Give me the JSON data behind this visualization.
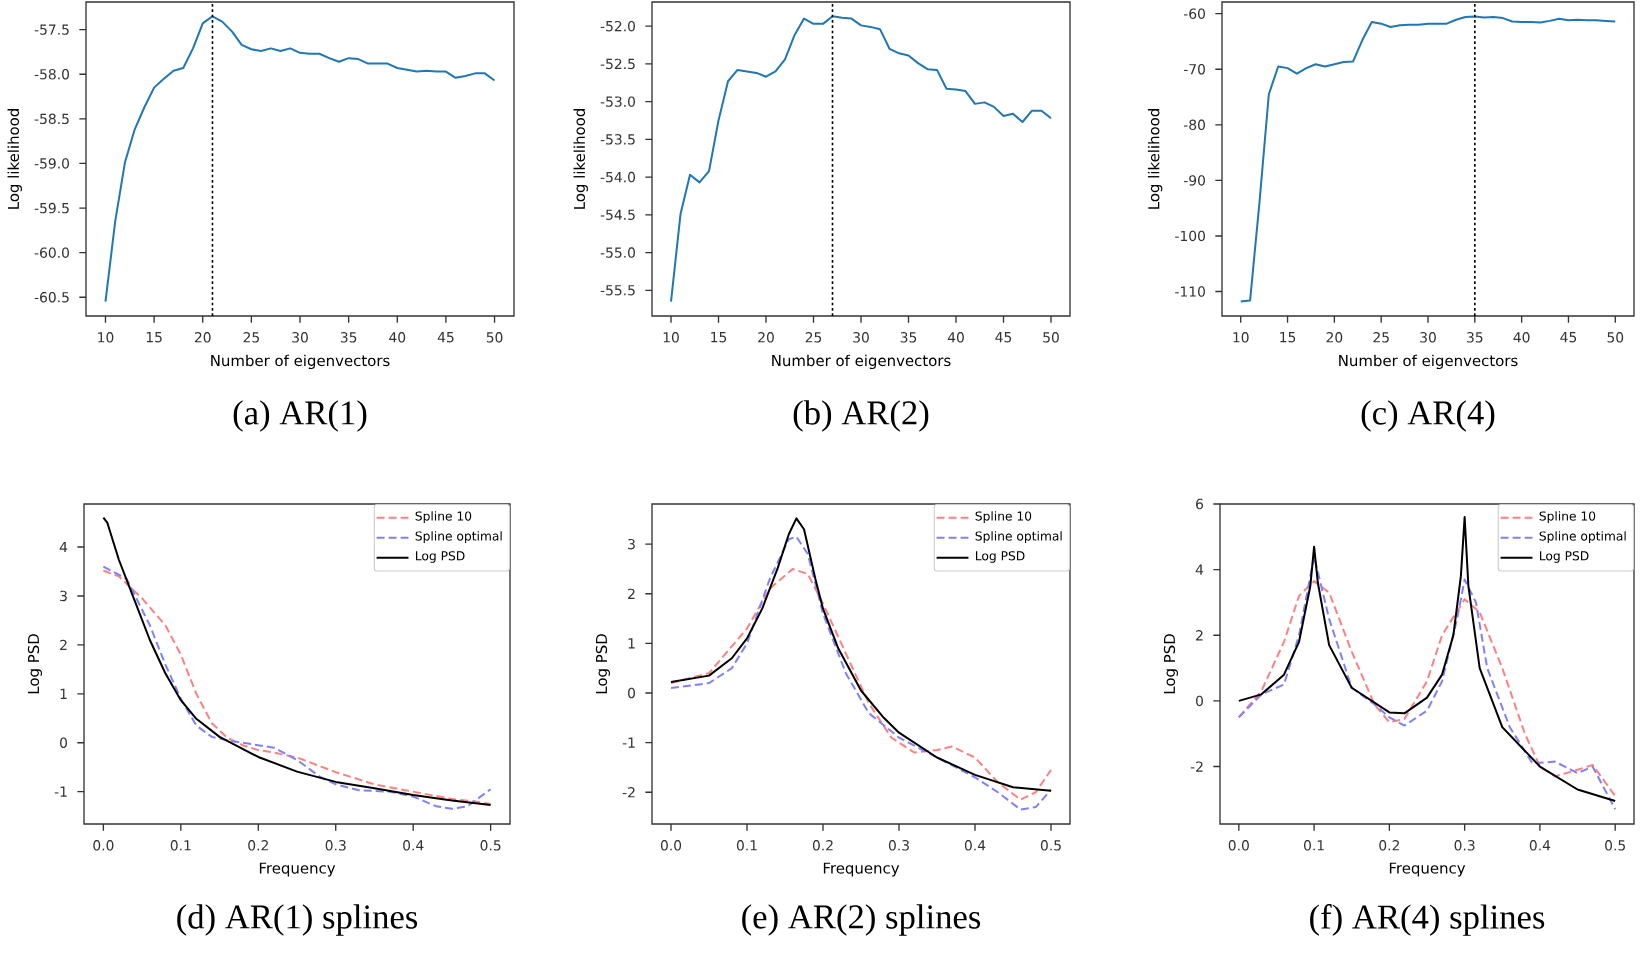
{
  "chart_data": [
    {
      "type": "line",
      "xlabel": "Number of eigenvectors",
      "ylabel": "Log likelihood",
      "annotations": [
        "(a) AR(1)"
      ],
      "x": [
        10,
        11,
        12,
        13,
        14,
        15,
        16,
        17,
        18,
        19,
        20,
        21,
        22,
        23,
        24,
        25,
        26,
        27,
        28,
        29,
        30,
        31,
        32,
        33,
        34,
        35,
        36,
        37,
        38,
        39,
        40,
        41,
        42,
        43,
        44,
        45,
        46,
        47,
        48,
        49,
        50
      ],
      "series": [
        {
          "color": "#1f77b4",
          "line_style": "solid",
          "values": [
            -60.55,
            -59.65,
            -58.99,
            -58.62,
            -58.37,
            -58.15,
            -58.05,
            -57.96,
            -57.93,
            -57.71,
            -57.43,
            -57.35,
            -57.41,
            -57.52,
            -57.67,
            -57.72,
            -57.74,
            -57.71,
            -57.74,
            -57.71,
            -57.76,
            -57.77,
            -57.77,
            -57.82,
            -57.86,
            -57.82,
            -57.83,
            -57.88,
            -57.88,
            -57.88,
            -57.93,
            -57.95,
            -57.97,
            -57.96,
            -57.97,
            -57.97,
            -58.04,
            -58.02,
            -57.99,
            -57.99,
            -58.07
          ]
        }
      ],
      "xlim": [
        8,
        52
      ],
      "ylim": [
        -60.71,
        -57.19
      ],
      "xticks": [
        10,
        15,
        20,
        25,
        30,
        35,
        40,
        45,
        50
      ],
      "yticks": [
        -60.5,
        {
          "value": -60,
          "label": "-60.0"
        },
        -59.5,
        {
          "value": -59,
          "label": "-59.0"
        },
        -58.5,
        {
          "value": -58,
          "label": "-58.0"
        },
        -57.5
      ],
      "ref_lines": [
        {
          "axis": "x",
          "value": 21,
          "color": "#000000",
          "line_style": "dotted"
        }
      ]
    },
    {
      "type": "line",
      "xlabel": "Number of eigenvectors",
      "ylabel": "Log likelihood",
      "annotations": [
        "(b) AR(2)"
      ],
      "x": [
        10,
        11,
        12,
        13,
        14,
        15,
        16,
        17,
        18,
        19,
        20,
        21,
        22,
        23,
        24,
        25,
        26,
        27,
        28,
        29,
        30,
        31,
        32,
        33,
        34,
        35,
        36,
        37,
        38,
        39,
        40,
        41,
        42,
        43,
        44,
        45,
        46,
        47,
        48,
        49,
        50
      ],
      "series": [
        {
          "color": "#1f77b4",
          "line_style": "solid",
          "values": [
            -55.65,
            -54.49,
            -53.97,
            -54.07,
            -53.92,
            -53.25,
            -52.73,
            -52.58,
            -52.6,
            -52.62,
            -52.67,
            -52.6,
            -52.44,
            -52.12,
            -51.9,
            -51.97,
            -51.97,
            -51.87,
            -51.89,
            -51.9,
            -51.99,
            -52.01,
            -52.04,
            -52.3,
            -52.36,
            -52.39,
            -52.49,
            -52.57,
            -52.58,
            -52.83,
            -52.84,
            -52.86,
            -53.03,
            -53.01,
            -53.07,
            -53.19,
            -53.16,
            -53.27,
            -53.12,
            -53.12,
            -53.22
          ]
        }
      ],
      "xlim": [
        8,
        52
      ],
      "ylim": [
        -55.84,
        -51.68
      ],
      "xticks": [
        10,
        15,
        20,
        25,
        30,
        35,
        40,
        45,
        50
      ],
      "yticks": [
        -55.5,
        {
          "value": -55,
          "label": "-55.0"
        },
        -54.5,
        {
          "value": -54,
          "label": "-54.0"
        },
        -53.5,
        {
          "value": -53,
          "label": "-53.0"
        },
        -52.5,
        {
          "value": -52,
          "label": "-52.0"
        }
      ],
      "ref_lines": [
        {
          "axis": "x",
          "value": 27,
          "color": "#000000",
          "line_style": "dotted"
        }
      ]
    },
    {
      "type": "line",
      "xlabel": "Number of eigenvectors",
      "ylabel": "Log likelihood",
      "annotations": [
        "(c) AR(4)"
      ],
      "x": [
        10,
        11,
        12,
        13,
        14,
        15,
        16,
        17,
        18,
        19,
        20,
        21,
        22,
        23,
        24,
        25,
        26,
        27,
        28,
        29,
        30,
        31,
        32,
        33,
        34,
        35,
        36,
        37,
        38,
        39,
        40,
        41,
        42,
        43,
        44,
        45,
        46,
        47,
        48,
        49,
        50
      ],
      "series": [
        {
          "color": "#1f77b4",
          "line_style": "solid",
          "values": [
            -111.8,
            -111.6,
            -94,
            -74.5,
            -69.5,
            -69.8,
            -70.8,
            -69.8,
            -69.1,
            -69.5,
            -69.1,
            -68.7,
            -68.6,
            -64.7,
            -61.5,
            -61.8,
            -62.4,
            -62.1,
            -62,
            -62,
            -61.8,
            -61.8,
            -61.8,
            -61.1,
            -60.6,
            -60.5,
            -60.7,
            -60.6,
            -60.8,
            -61.4,
            -61.5,
            -61.5,
            -61.6,
            -61.3,
            -60.9,
            -61.2,
            -61.1,
            -61.2,
            -61.2,
            -61.3,
            -61.4
          ]
        }
      ],
      "xlim": [
        8,
        52
      ],
      "ylim": [
        -114.4,
        -57.9
      ],
      "xticks": [
        10,
        15,
        20,
        25,
        30,
        35,
        40,
        45,
        50
      ],
      "yticks": [
        -110,
        -100,
        -90,
        -80,
        -70,
        -60
      ],
      "ref_lines": [
        {
          "axis": "x",
          "value": 35,
          "color": "#000000",
          "line_style": "dotted"
        }
      ]
    },
    {
      "type": "line",
      "xlabel": "Frequency",
      "ylabel": "Log PSD",
      "annotations": [
        "(d) AR(1) splines"
      ],
      "legend": "top right",
      "series": [
        {
          "name": "Spline 10",
          "color": "#ff8080",
          "line_style": "dashed",
          "x": [
            0,
            0.02,
            0.05,
            0.08,
            0.1,
            0.12,
            0.14,
            0.16,
            0.18,
            0.2,
            0.22,
            0.25,
            0.3,
            0.35,
            0.4,
            0.45,
            0.48,
            0.5
          ],
          "values": [
            3.52,
            3.4,
            2.95,
            2.4,
            1.8,
            1.0,
            0.4,
            0.1,
            -0.05,
            -0.15,
            -0.2,
            -0.3,
            -0.6,
            -0.85,
            -1.0,
            -1.15,
            -1.2,
            -1.25
          ]
        },
        {
          "name": "Spline optimal",
          "color": "#8080ff",
          "line_style": "dashed",
          "x": [
            0,
            0.03,
            0.06,
            0.08,
            0.1,
            0.12,
            0.14,
            0.16,
            0.18,
            0.2,
            0.22,
            0.25,
            0.28,
            0.3,
            0.33,
            0.37,
            0.4,
            0.43,
            0.45,
            0.47,
            0.5
          ],
          "values": [
            3.6,
            3.35,
            2.4,
            1.6,
            0.9,
            0.35,
            0.12,
            0.05,
            0.0,
            -0.05,
            -0.1,
            -0.35,
            -0.7,
            -0.85,
            -0.97,
            -1.0,
            -1.1,
            -1.3,
            -1.35,
            -1.3,
            -0.95
          ]
        },
        {
          "name": "Log PSD",
          "color": "#000000",
          "line_style": "solid",
          "x": [
            0,
            0.005,
            0.02,
            0.04,
            0.06,
            0.08,
            0.1,
            0.12,
            0.15,
            0.2,
            0.25,
            0.3,
            0.35,
            0.4,
            0.45,
            0.5
          ],
          "values": [
            4.6,
            4.5,
            3.74,
            2.92,
            2.1,
            1.42,
            0.87,
            0.49,
            0.12,
            -0.29,
            -0.59,
            -0.8,
            -0.93,
            -1.07,
            -1.18,
            -1.27
          ]
        }
      ],
      "xlim": [
        -0.025,
        0.525
      ],
      "ylim": [
        -1.66,
        4.88
      ],
      "xticks": [
        {
          "value": 0,
          "label": "0.0"
        },
        {
          "value": 0.1,
          "label": "0.1"
        },
        {
          "value": 0.2,
          "label": "0.2"
        },
        {
          "value": 0.3,
          "label": "0.3"
        },
        {
          "value": 0.4,
          "label": "0.4"
        },
        {
          "value": 0.5,
          "label": "0.5"
        }
      ],
      "yticks": [
        -1,
        0,
        1,
        2,
        3,
        4
      ]
    },
    {
      "type": "line",
      "xlabel": "Frequency",
      "ylabel": "Log PSD",
      "annotations": [
        "(e) AR(2) splines"
      ],
      "legend": "top right",
      "series": [
        {
          "name": "Spline 10",
          "color": "#ff8080",
          "line_style": "dashed",
          "x": [
            0,
            0.05,
            0.1,
            0.13,
            0.16,
            0.18,
            0.2,
            0.23,
            0.26,
            0.29,
            0.32,
            0.35,
            0.37,
            0.4,
            0.43,
            0.46,
            0.48,
            0.5
          ],
          "values": [
            0.2,
            0.4,
            1.3,
            2.1,
            2.5,
            2.4,
            1.8,
            0.8,
            -0.2,
            -0.9,
            -1.2,
            -1.15,
            -1.08,
            -1.3,
            -1.8,
            -2.15,
            -2.0,
            -1.55
          ]
        },
        {
          "name": "Spline optimal",
          "color": "#8080ff",
          "line_style": "dashed",
          "x": [
            0,
            0.05,
            0.08,
            0.1,
            0.13,
            0.155,
            0.165,
            0.18,
            0.2,
            0.23,
            0.26,
            0.3,
            0.35,
            0.4,
            0.43,
            0.46,
            0.48,
            0.5
          ],
          "values": [
            0.1,
            0.2,
            0.5,
            1.0,
            2.3,
            3.1,
            3.15,
            2.8,
            1.6,
            0.4,
            -0.4,
            -0.9,
            -1.3,
            -1.7,
            -2.0,
            -2.35,
            -2.3,
            -1.95
          ]
        },
        {
          "name": "Log PSD",
          "color": "#000000",
          "line_style": "solid",
          "x": [
            0,
            0.05,
            0.08,
            0.1,
            0.12,
            0.14,
            0.155,
            0.165,
            0.175,
            0.19,
            0.2,
            0.22,
            0.25,
            0.28,
            0.3,
            0.35,
            0.4,
            0.45,
            0.5
          ],
          "values": [
            0.22,
            0.35,
            0.7,
            1.1,
            1.7,
            2.5,
            3.2,
            3.52,
            3.3,
            2.3,
            1.7,
            0.9,
            0.05,
            -0.5,
            -0.8,
            -1.3,
            -1.65,
            -1.9,
            -1.97
          ]
        }
      ],
      "xlim": [
        -0.025,
        0.525
      ],
      "ylim": [
        -2.64,
        3.81
      ],
      "xticks": [
        {
          "value": 0,
          "label": "0.0"
        },
        {
          "value": 0.1,
          "label": "0.1"
        },
        {
          "value": 0.2,
          "label": "0.2"
        },
        {
          "value": 0.3,
          "label": "0.3"
        },
        {
          "value": 0.4,
          "label": "0.4"
        },
        {
          "value": 0.5,
          "label": "0.5"
        }
      ],
      "yticks": [
        -2,
        -1,
        0,
        1,
        2,
        3
      ]
    },
    {
      "type": "line",
      "xlabel": "Frequency",
      "ylabel": "Log PSD",
      "annotations": [
        "(f) AR(4) splines"
      ],
      "legend": "top right",
      "series": [
        {
          "name": "Spline 10",
          "color": "#ff8080",
          "line_style": "dashed",
          "x": [
            0,
            0.03,
            0.06,
            0.08,
            0.1,
            0.12,
            0.15,
            0.18,
            0.2,
            0.22,
            0.25,
            0.27,
            0.3,
            0.32,
            0.35,
            0.38,
            0.4,
            0.42,
            0.45,
            0.47,
            0.5
          ],
          "values": [
            -0.5,
            0.3,
            1.8,
            3.2,
            3.65,
            3.3,
            1.5,
            -0.1,
            -0.65,
            -0.55,
            0.6,
            2.0,
            3.1,
            2.7,
            1.0,
            -1.0,
            -2.0,
            -2.3,
            -2.1,
            -1.95,
            -2.9
          ]
        },
        {
          "name": "Spline optimal",
          "color": "#8080ff",
          "line_style": "dashed",
          "x": [
            0,
            0.03,
            0.06,
            0.08,
            0.1,
            0.12,
            0.15,
            0.18,
            0.2,
            0.22,
            0.25,
            0.27,
            0.29,
            0.3,
            0.315,
            0.33,
            0.36,
            0.39,
            0.42,
            0.45,
            0.47,
            0.5
          ],
          "values": [
            -0.5,
            0.2,
            0.5,
            2.0,
            4.4,
            2.5,
            0.4,
            -0.1,
            -0.5,
            -0.75,
            -0.3,
            0.6,
            2.5,
            3.7,
            3.0,
            1.0,
            -0.8,
            -1.9,
            -1.85,
            -2.2,
            -2.0,
            -3.3
          ]
        },
        {
          "name": "Log PSD",
          "color": "#000000",
          "line_style": "solid",
          "x": [
            0,
            0.03,
            0.06,
            0.08,
            0.095,
            0.1,
            0.105,
            0.12,
            0.15,
            0.2,
            0.22,
            0.25,
            0.27,
            0.285,
            0.295,
            0.3,
            0.305,
            0.32,
            0.35,
            0.4,
            0.45,
            0.5
          ],
          "values": [
            0.0,
            0.2,
            0.8,
            1.8,
            3.5,
            4.7,
            3.6,
            1.7,
            0.4,
            -0.35,
            -0.38,
            0.1,
            0.8,
            2.0,
            3.8,
            5.6,
            3.5,
            1.0,
            -0.8,
            -2.0,
            -2.7,
            -3.05
          ]
        }
      ],
      "xlim": [
        -0.025,
        0.525
      ],
      "ylim": [
        -3.75,
        6.0
      ],
      "xticks": [
        {
          "value": 0,
          "label": "0.0"
        },
        {
          "value": 0.1,
          "label": "0.1"
        },
        {
          "value": 0.2,
          "label": "0.2"
        },
        {
          "value": 0.3,
          "label": "0.3"
        },
        {
          "value": 0.4,
          "label": "0.4"
        },
        {
          "value": 0.5,
          "label": "0.5"
        }
      ],
      "yticks": [
        -2,
        0,
        2,
        4,
        6
      ]
    }
  ]
}
